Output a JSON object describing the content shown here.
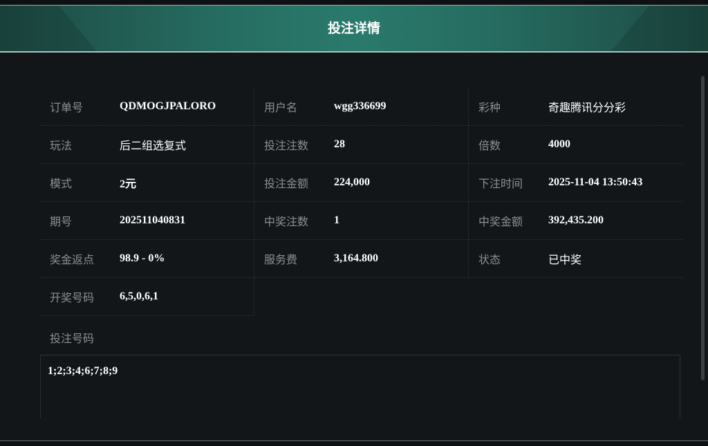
{
  "header": {
    "title": "投注详情"
  },
  "rows": [
    [
      {
        "label": "订单号",
        "value": "QDMOGJPALORO"
      },
      {
        "label": "用户名",
        "value": "wgg336699"
      },
      {
        "label": "彩种",
        "value": "奇趣腾讯分分彩"
      }
    ],
    [
      {
        "label": "玩法",
        "value": "后二组选复式"
      },
      {
        "label": "投注注数",
        "value": "28"
      },
      {
        "label": "倍数",
        "value": "4000"
      }
    ],
    [
      {
        "label": "模式",
        "value": "2元"
      },
      {
        "label": "投注金额",
        "value": "224,000"
      },
      {
        "label": "下注时间",
        "value": "2025-11-04 13:50:43"
      }
    ],
    [
      {
        "label": "期号",
        "value": "202511040831"
      },
      {
        "label": "中奖注数",
        "value": "1"
      },
      {
        "label": "中奖金额",
        "value": "392,435.200"
      }
    ],
    [
      {
        "label": "奖金返点",
        "value": "98.9 - 0%"
      },
      {
        "label": "服务费",
        "value": "3,164.800"
      },
      {
        "label": "状态",
        "value": "已中奖"
      }
    ],
    [
      {
        "label": "开奖号码",
        "value": "6,5,0,6,1"
      }
    ]
  ],
  "bet_numbers": {
    "label": "投注号码",
    "value": "1;2;3;4;6;7;8;9"
  }
}
